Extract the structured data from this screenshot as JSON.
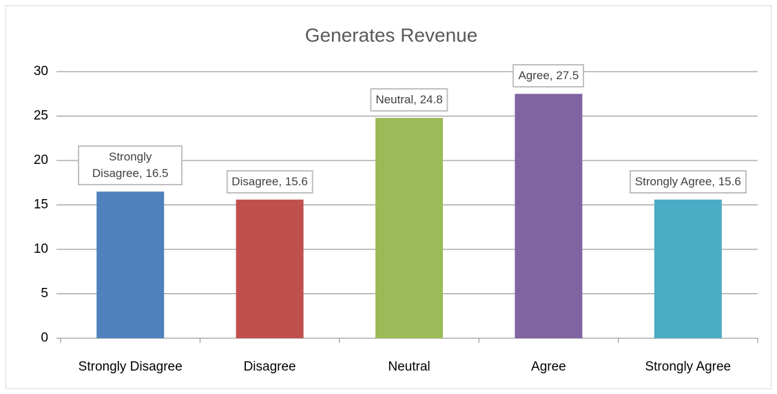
{
  "chart_data": {
    "type": "bar",
    "title": "Generates Revenue",
    "categories": [
      "Strongly Disagree",
      "Disagree",
      "Neutral",
      "Agree",
      "Strongly Agree"
    ],
    "values": [
      16.5,
      15.6,
      24.8,
      27.5,
      15.6
    ],
    "value_labels": [
      "Strongly Disagree, 16.5",
      "Disagree, 15.6",
      "Neutral, 24.8",
      "Agree, 27.5",
      "Strongly Agree, 15.6"
    ],
    "colors": [
      "#4f81bd",
      "#c0504d",
      "#9bbb59",
      "#8064a2",
      "#4bacc6"
    ],
    "ylim": [
      0,
      30
    ],
    "yticks": [
      0,
      5,
      10,
      15,
      20,
      25,
      30
    ],
    "grid": true
  }
}
